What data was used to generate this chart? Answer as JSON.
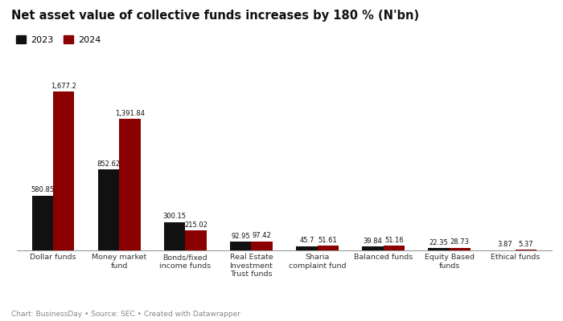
{
  "title": "Net asset value of collective funds increases by 180 % (N'bn)",
  "categories": [
    "Dollar funds",
    "Money market\nfund",
    "Bonds/fixed\nincome funds",
    "Real Estate\nInvestment\nTrust funds",
    "Sharia\ncomplaint fund",
    "Balanced funds",
    "Equity Based\nfunds",
    "Ethical funds"
  ],
  "values_2023": [
    580.85,
    852.62,
    300.15,
    92.95,
    45.7,
    39.84,
    22.35,
    3.87
  ],
  "values_2024": [
    1677.2,
    1391.84,
    215.02,
    97.42,
    51.61,
    51.16,
    28.73,
    5.37
  ],
  "labels_2023": [
    "580.85",
    "852.62",
    "300.15",
    "92.95",
    "45.7",
    "39.84",
    "22.35",
    "3.87"
  ],
  "labels_2024": [
    "1,677.2",
    "1,391.84",
    "215.02",
    "97.42",
    "51.61",
    "51.16",
    "28.73",
    "5.37"
  ],
  "color_2023": "#111111",
  "color_2024": "#8b0000",
  "legend_2023": "2023",
  "legend_2024": "2024",
  "caption": "Chart: BusinessDay • Source: SEC • Created with Datawrapper",
  "background_color": "#ffffff",
  "bar_width": 0.32,
  "ylim": [
    0,
    1900
  ]
}
